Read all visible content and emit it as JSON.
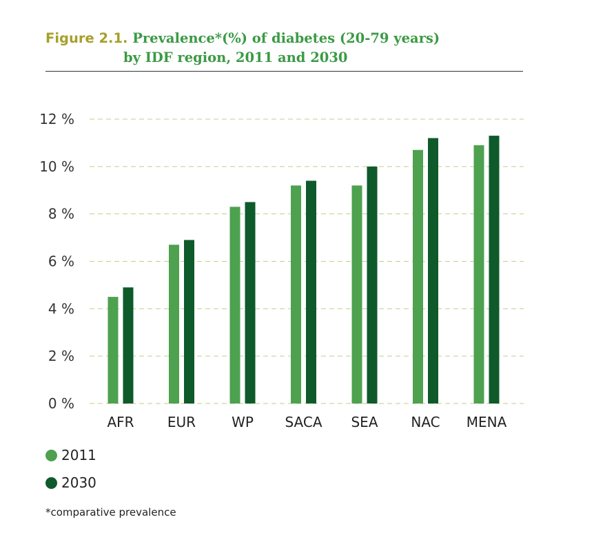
{
  "figure": {
    "label": "Figure 2.1.",
    "title_line1": "Prevalence*(%) of diabetes (20-79 years)",
    "title_line2": "by IDF region, 2011 and 2030",
    "footnote": "*comparative prevalence"
  },
  "colors": {
    "title_label": "#a7a02c",
    "title_text": "#3b9a44",
    "series_2011": "#4ea14f",
    "series_2030": "#0e5a2b",
    "grid": "#c9c98a"
  },
  "chart_data": {
    "type": "bar",
    "title": "Prevalence*(%) of diabetes (20-79 years) by IDF region, 2011 and 2030",
    "xlabel": "",
    "ylabel": "",
    "categories": [
      "AFR",
      "EUR",
      "WP",
      "SACA",
      "SEA",
      "NAC",
      "MENA"
    ],
    "series": [
      {
        "name": "2011",
        "values": [
          4.5,
          6.7,
          8.3,
          9.2,
          9.2,
          10.7,
          10.9
        ]
      },
      {
        "name": "2030",
        "values": [
          4.9,
          6.9,
          8.5,
          9.4,
          10.0,
          11.2,
          11.3
        ]
      }
    ],
    "ylim": [
      0,
      12
    ],
    "yticks": [
      0,
      2,
      4,
      6,
      8,
      10,
      12
    ],
    "ytick_labels": [
      "0 %",
      "2 %",
      "4 %",
      "6 %",
      "8 %",
      "10 %",
      "12 %"
    ],
    "grid": "horizontal-dashed",
    "legend_position": "bottom-left"
  }
}
